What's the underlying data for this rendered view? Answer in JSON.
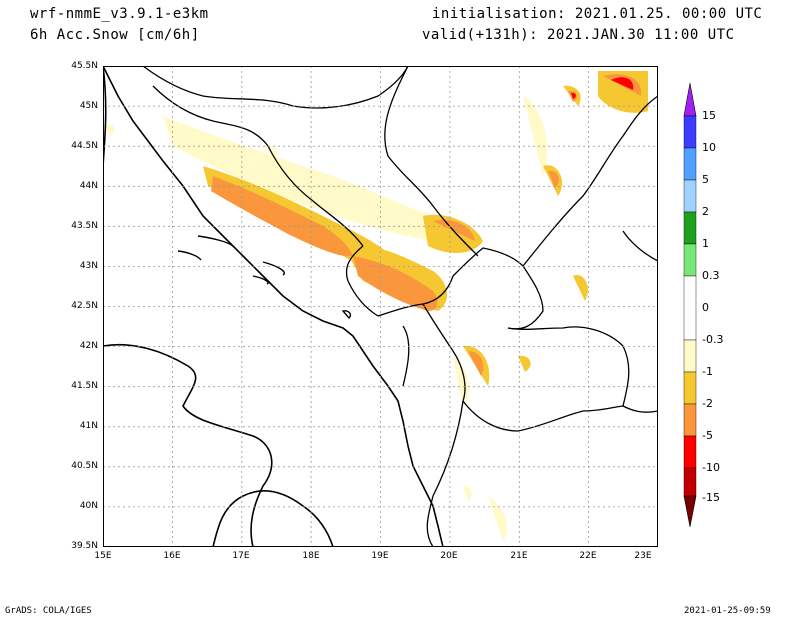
{
  "header": {
    "model": "wrf-nmmE_v3.9.1-e3km",
    "variable": "6h Acc.Snow [cm/6h]",
    "init": "initialisation: 2021.01.25.  00:00 UTC",
    "valid": "valid(+131h): 2021.JAN.30 11:00 UTC"
  },
  "footer": {
    "credit": "GrADS: COLA/IGES",
    "timestamp": "2021-01-25-09:59"
  },
  "axes": {
    "lat_labels": [
      "45.5N",
      "45N",
      "44.5N",
      "44N",
      "43.5N",
      "43N",
      "42.5N",
      "42N",
      "41.5N",
      "41N",
      "40.5N",
      "40N",
      "39.5N"
    ],
    "lon_labels": [
      "15E",
      "16E",
      "17E",
      "18E",
      "19E",
      "20E",
      "21E",
      "22E",
      "23E"
    ]
  },
  "legend": {
    "labels": [
      "15",
      "10",
      "5",
      "2",
      "1",
      "0.3",
      "0",
      "-0.3",
      "-1",
      "-2",
      "-5",
      "-10",
      "-15"
    ],
    "colors": [
      "#a020f0",
      "#3c3cff",
      "#50a0ff",
      "#a0d2ff",
      "#1ea01e",
      "#78e678",
      "#ffffff",
      "#fffac8",
      "#f5c832",
      "#fa963c",
      "#ff0000",
      "#c00000",
      "#780000"
    ]
  },
  "colors": {
    "level_light": "#fffac8",
    "level_yellow": "#f5c832",
    "level_orange": "#fa963c",
    "level_red": "#ff0000"
  }
}
